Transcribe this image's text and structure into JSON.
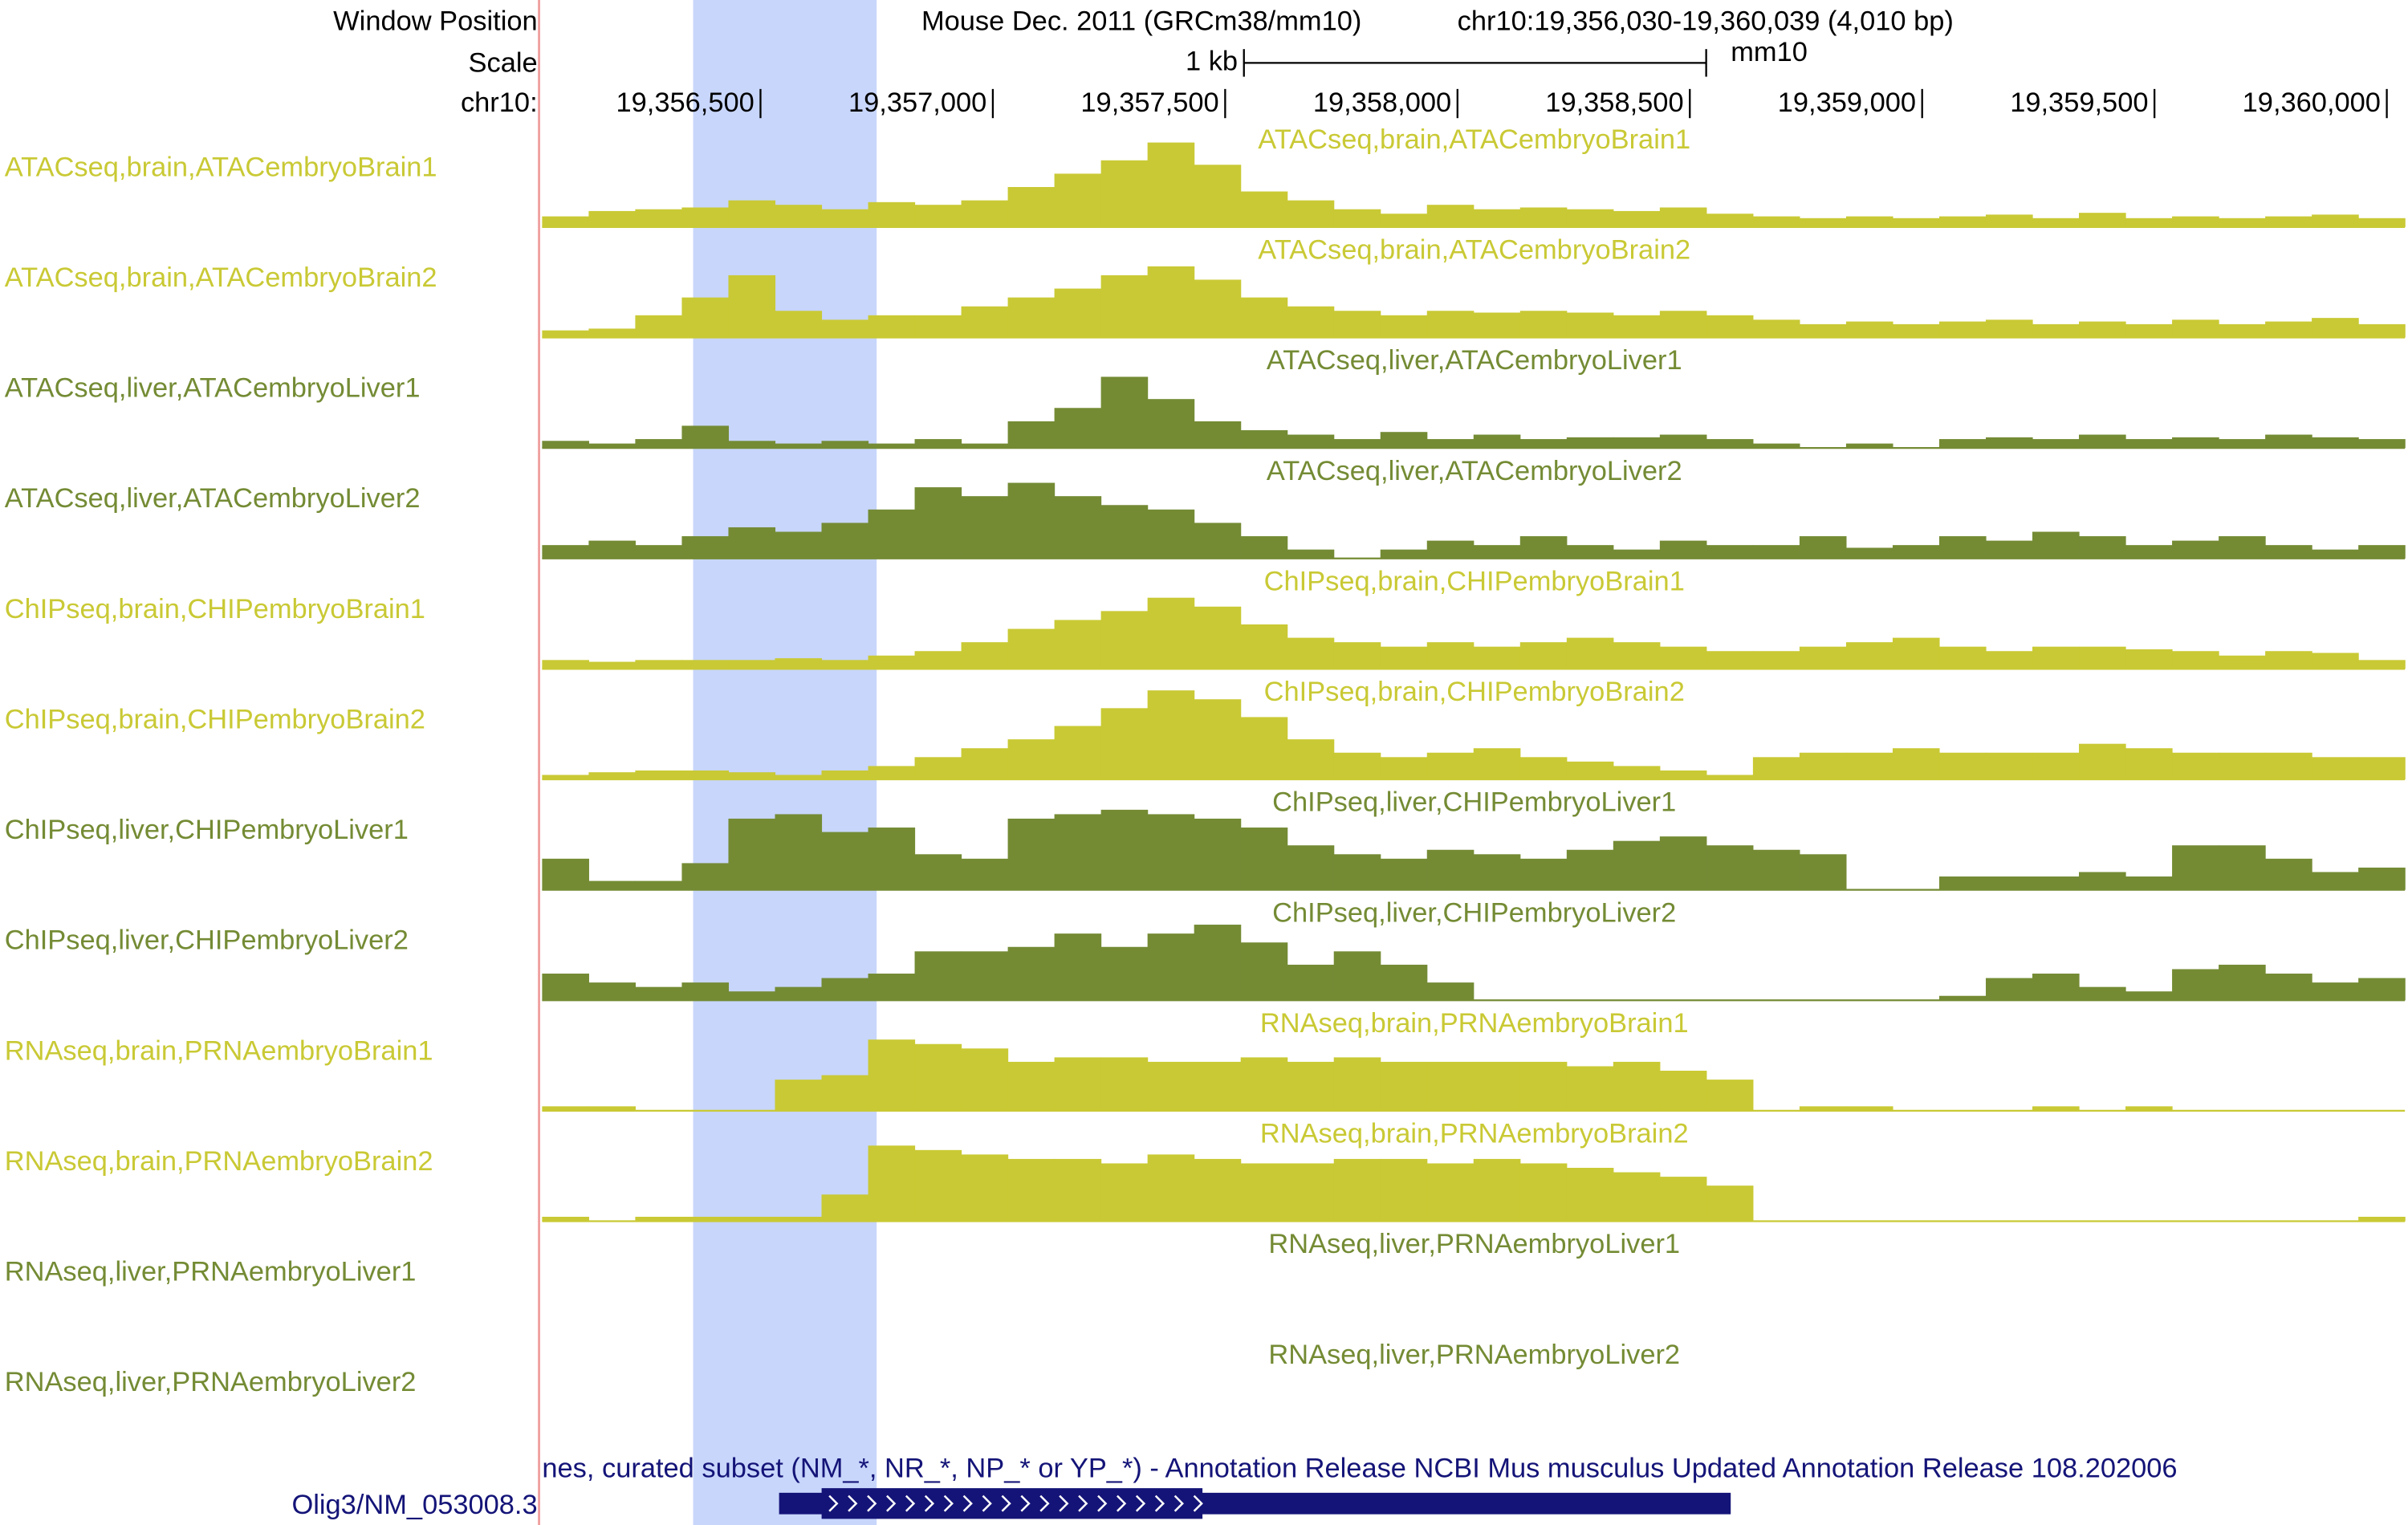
{
  "header": {
    "window_label": "Window Position",
    "assembly": "Mouse Dec. 2011 (GRCm38/mm10)",
    "position": "chr10:19,356,030-19,360,039 (4,010 bp)",
    "scale_label": "Scale",
    "scale_text": "1 kb",
    "scale_db": "mm10",
    "chrom_label": "chr10:"
  },
  "ruler": {
    "xlim": [
      19356030,
      19360039
    ],
    "ticks": [
      {
        "value": 19356500,
        "label": "19,356,500"
      },
      {
        "value": 19357000,
        "label": "19,357,000"
      },
      {
        "value": 19357500,
        "label": "19,357,500"
      },
      {
        "value": 19358000,
        "label": "19,358,000"
      },
      {
        "value": 19358500,
        "label": "19,358,500"
      },
      {
        "value": 19359000,
        "label": "19,359,000"
      },
      {
        "value": 19359500,
        "label": "19,359,500"
      },
      {
        "value": 19360000,
        "label": "19,360,000"
      }
    ]
  },
  "highlight": [
    19356355,
    19356750
  ],
  "tracks": [
    {
      "label": "ATACseq,brain,ATACembryoBrain1",
      "color": "#c9c935",
      "values": [
        12,
        18,
        20,
        22,
        30,
        25,
        20,
        28,
        25,
        30,
        45,
        60,
        75,
        95,
        70,
        40,
        30,
        20,
        15,
        25,
        20,
        22,
        20,
        18,
        22,
        15,
        12,
        10,
        12,
        10,
        12,
        14,
        10,
        16,
        10,
        12,
        10,
        12,
        14,
        10
      ]
    },
    {
      "label": "ATACseq,brain,ATACembryoBrain2",
      "color": "#c9c935",
      "values": [
        8,
        10,
        25,
        45,
        70,
        30,
        20,
        25,
        25,
        35,
        45,
        55,
        70,
        80,
        65,
        45,
        35,
        30,
        25,
        30,
        28,
        30,
        28,
        25,
        30,
        25,
        20,
        15,
        18,
        15,
        18,
        20,
        15,
        18,
        15,
        20,
        15,
        18,
        22,
        15
      ]
    },
    {
      "label": "ATACseq,liver,ATACembryoLiver1",
      "color": "#748b34",
      "values": [
        8,
        5,
        10,
        25,
        8,
        5,
        8,
        5,
        10,
        5,
        30,
        45,
        80,
        55,
        30,
        20,
        15,
        10,
        18,
        10,
        15,
        10,
        12,
        12,
        15,
        10,
        5,
        0,
        5,
        0,
        10,
        12,
        10,
        15,
        10,
        12,
        10,
        15,
        12,
        10
      ]
    },
    {
      "label": "ATACseq,liver,ATACembryoLiver2",
      "color": "#748b34",
      "values": [
        15,
        20,
        15,
        25,
        35,
        30,
        40,
        55,
        80,
        70,
        85,
        70,
        60,
        55,
        40,
        25,
        10,
        0,
        10,
        20,
        15,
        25,
        15,
        10,
        20,
        15,
        15,
        25,
        12,
        15,
        25,
        20,
        30,
        25,
        15,
        20,
        25,
        15,
        10,
        15
      ]
    },
    {
      "label": "ChIPseq,brain,CHIPembryoBrain1",
      "color": "#c9c935",
      "values": [
        10,
        8,
        10,
        10,
        10,
        12,
        10,
        15,
        20,
        30,
        45,
        55,
        65,
        80,
        70,
        50,
        35,
        30,
        25,
        30,
        25,
        30,
        35,
        30,
        25,
        20,
        20,
        25,
        30,
        35,
        25,
        20,
        25,
        25,
        22,
        20,
        15,
        20,
        18,
        10
      ]
    },
    {
      "label": "ChIPseq,brain,CHIPembryoBrain2",
      "color": "#c9c935",
      "values": [
        5,
        8,
        10,
        10,
        8,
        5,
        10,
        15,
        25,
        35,
        45,
        60,
        80,
        100,
        90,
        70,
        45,
        30,
        25,
        30,
        35,
        25,
        20,
        15,
        10,
        5,
        25,
        30,
        30,
        35,
        30,
        30,
        30,
        40,
        35,
        30,
        30,
        30,
        25,
        25
      ]
    },
    {
      "label": "ChIPseq,liver,CHIPembryoLiver1",
      "color": "#748b34",
      "values": [
        35,
        10,
        10,
        30,
        80,
        85,
        65,
        70,
        40,
        35,
        80,
        85,
        90,
        85,
        80,
        70,
        50,
        40,
        35,
        45,
        40,
        35,
        45,
        55,
        60,
        50,
        45,
        40,
        0,
        0,
        15,
        15,
        15,
        20,
        15,
        50,
        50,
        35,
        20,
        25
      ]
    },
    {
      "label": "ChIPseq,liver,CHIPembryoLiver2",
      "color": "#748b34",
      "values": [
        30,
        20,
        15,
        20,
        10,
        15,
        25,
        30,
        55,
        55,
        60,
        75,
        60,
        75,
        85,
        65,
        40,
        55,
        40,
        20,
        0,
        0,
        0,
        0,
        0,
        0,
        0,
        0,
        0,
        0,
        5,
        25,
        30,
        15,
        10,
        35,
        40,
        30,
        20,
        25
      ]
    },
    {
      "label": "RNAseq,brain,PRNAembryoBrain1",
      "color": "#c9c935",
      "values": [
        5,
        5,
        0,
        0,
        0,
        35,
        40,
        80,
        75,
        70,
        55,
        60,
        60,
        55,
        55,
        60,
        55,
        60,
        55,
        55,
        55,
        55,
        50,
        55,
        45,
        35,
        0,
        5,
        5,
        0,
        0,
        0,
        5,
        0,
        5,
        0,
        0,
        0,
        0,
        0
      ]
    },
    {
      "label": "RNAseq,brain,PRNAembryoBrain2",
      "color": "#c9c935",
      "values": [
        5,
        0,
        5,
        5,
        5,
        5,
        30,
        85,
        80,
        75,
        70,
        70,
        65,
        75,
        70,
        65,
        65,
        70,
        70,
        65,
        70,
        65,
        60,
        55,
        50,
        40,
        0,
        0,
        0,
        0,
        0,
        0,
        0,
        0,
        0,
        0,
        0,
        0,
        0,
        5
      ]
    },
    {
      "label": "RNAseq,liver,PRNAembryoLiver1",
      "color": "#748b34",
      "values": [
        0,
        0,
        0,
        0,
        0,
        0,
        0,
        0,
        0,
        0,
        0,
        0,
        0,
        0,
        0,
        0,
        0,
        0,
        0,
        0,
        0,
        0,
        0,
        0,
        0,
        0,
        0,
        0,
        0,
        0,
        0,
        0,
        0,
        0,
        0,
        0,
        0,
        0,
        0,
        0
      ]
    },
    {
      "label": "RNAseq,liver,PRNAembryoLiver2",
      "color": "#748b34",
      "values": [
        0,
        0,
        0,
        0,
        0,
        0,
        0,
        0,
        0,
        0,
        0,
        0,
        0,
        0,
        0,
        0,
        0,
        0,
        0,
        0,
        0,
        0,
        0,
        0,
        0,
        0,
        0,
        0,
        0,
        0,
        0,
        0,
        0,
        0,
        0,
        0,
        0,
        0,
        0,
        0
      ]
    }
  ],
  "gene_track": {
    "title": "nes, curated subset (NM_*, NR_*, NP_* or YP_*) - Annotation Release NCBI Mus musculus Updated Annotation Release 108.202006",
    "name": "Olig3/NM_053008.3",
    "start": 19356540,
    "end": 19358588,
    "color": "#141478"
  }
}
